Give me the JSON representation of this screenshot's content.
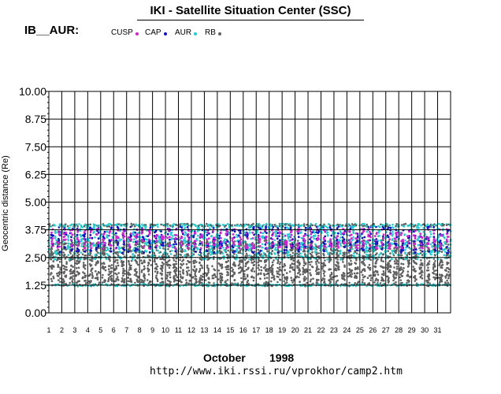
{
  "header": {
    "title": "IKI - Satellite Situation Center (SSC)",
    "region_label": "IB__AUR:"
  },
  "legend": [
    {
      "label": "CUSP",
      "color": "#d81fd8"
    },
    {
      "label": "CAP",
      "color": "#1010c8"
    },
    {
      "label": "AUR",
      "color": "#19d2d2"
    },
    {
      "label": "RB",
      "color": "#606060"
    }
  ],
  "footer": {
    "month": "October",
    "year": "1998",
    "url": "http://www.iki.rssi.ru/vprokhor/camp2.htm"
  },
  "chart_data": {
    "type": "scatter",
    "ylabel": "Geocentric distance (Re)",
    "ylim": [
      0,
      10
    ],
    "xlim": [
      1,
      32
    ],
    "yticks": [
      "0.00",
      "1.25",
      "2.50",
      "3.75",
      "5.00",
      "6.25",
      "7.50",
      "8.75",
      "10.00"
    ],
    "xticks": [
      "1",
      "2",
      "3",
      "4",
      "5",
      "6",
      "7",
      "8",
      "9",
      "10",
      "11",
      "12",
      "13",
      "14",
      "15",
      "16",
      "17",
      "18",
      "19",
      "20",
      "21",
      "22",
      "23",
      "24",
      "25",
      "26",
      "27",
      "28",
      "29",
      "30",
      "31"
    ],
    "grid": true,
    "orbits_per_day": 2,
    "series": [
      {
        "name": "CUSP",
        "color": "#d81fd8",
        "y_range": [
          2.9,
          3.8
        ]
      },
      {
        "name": "CAP",
        "color": "#1010c8",
        "y_range": [
          2.7,
          3.9
        ]
      },
      {
        "name": "AUR",
        "color": "#19d2d2",
        "y_range": [
          1.2,
          3.95
        ]
      },
      {
        "name": "RB",
        "color": "#606060",
        "y_range": [
          1.2,
          3.3
        ]
      }
    ]
  }
}
